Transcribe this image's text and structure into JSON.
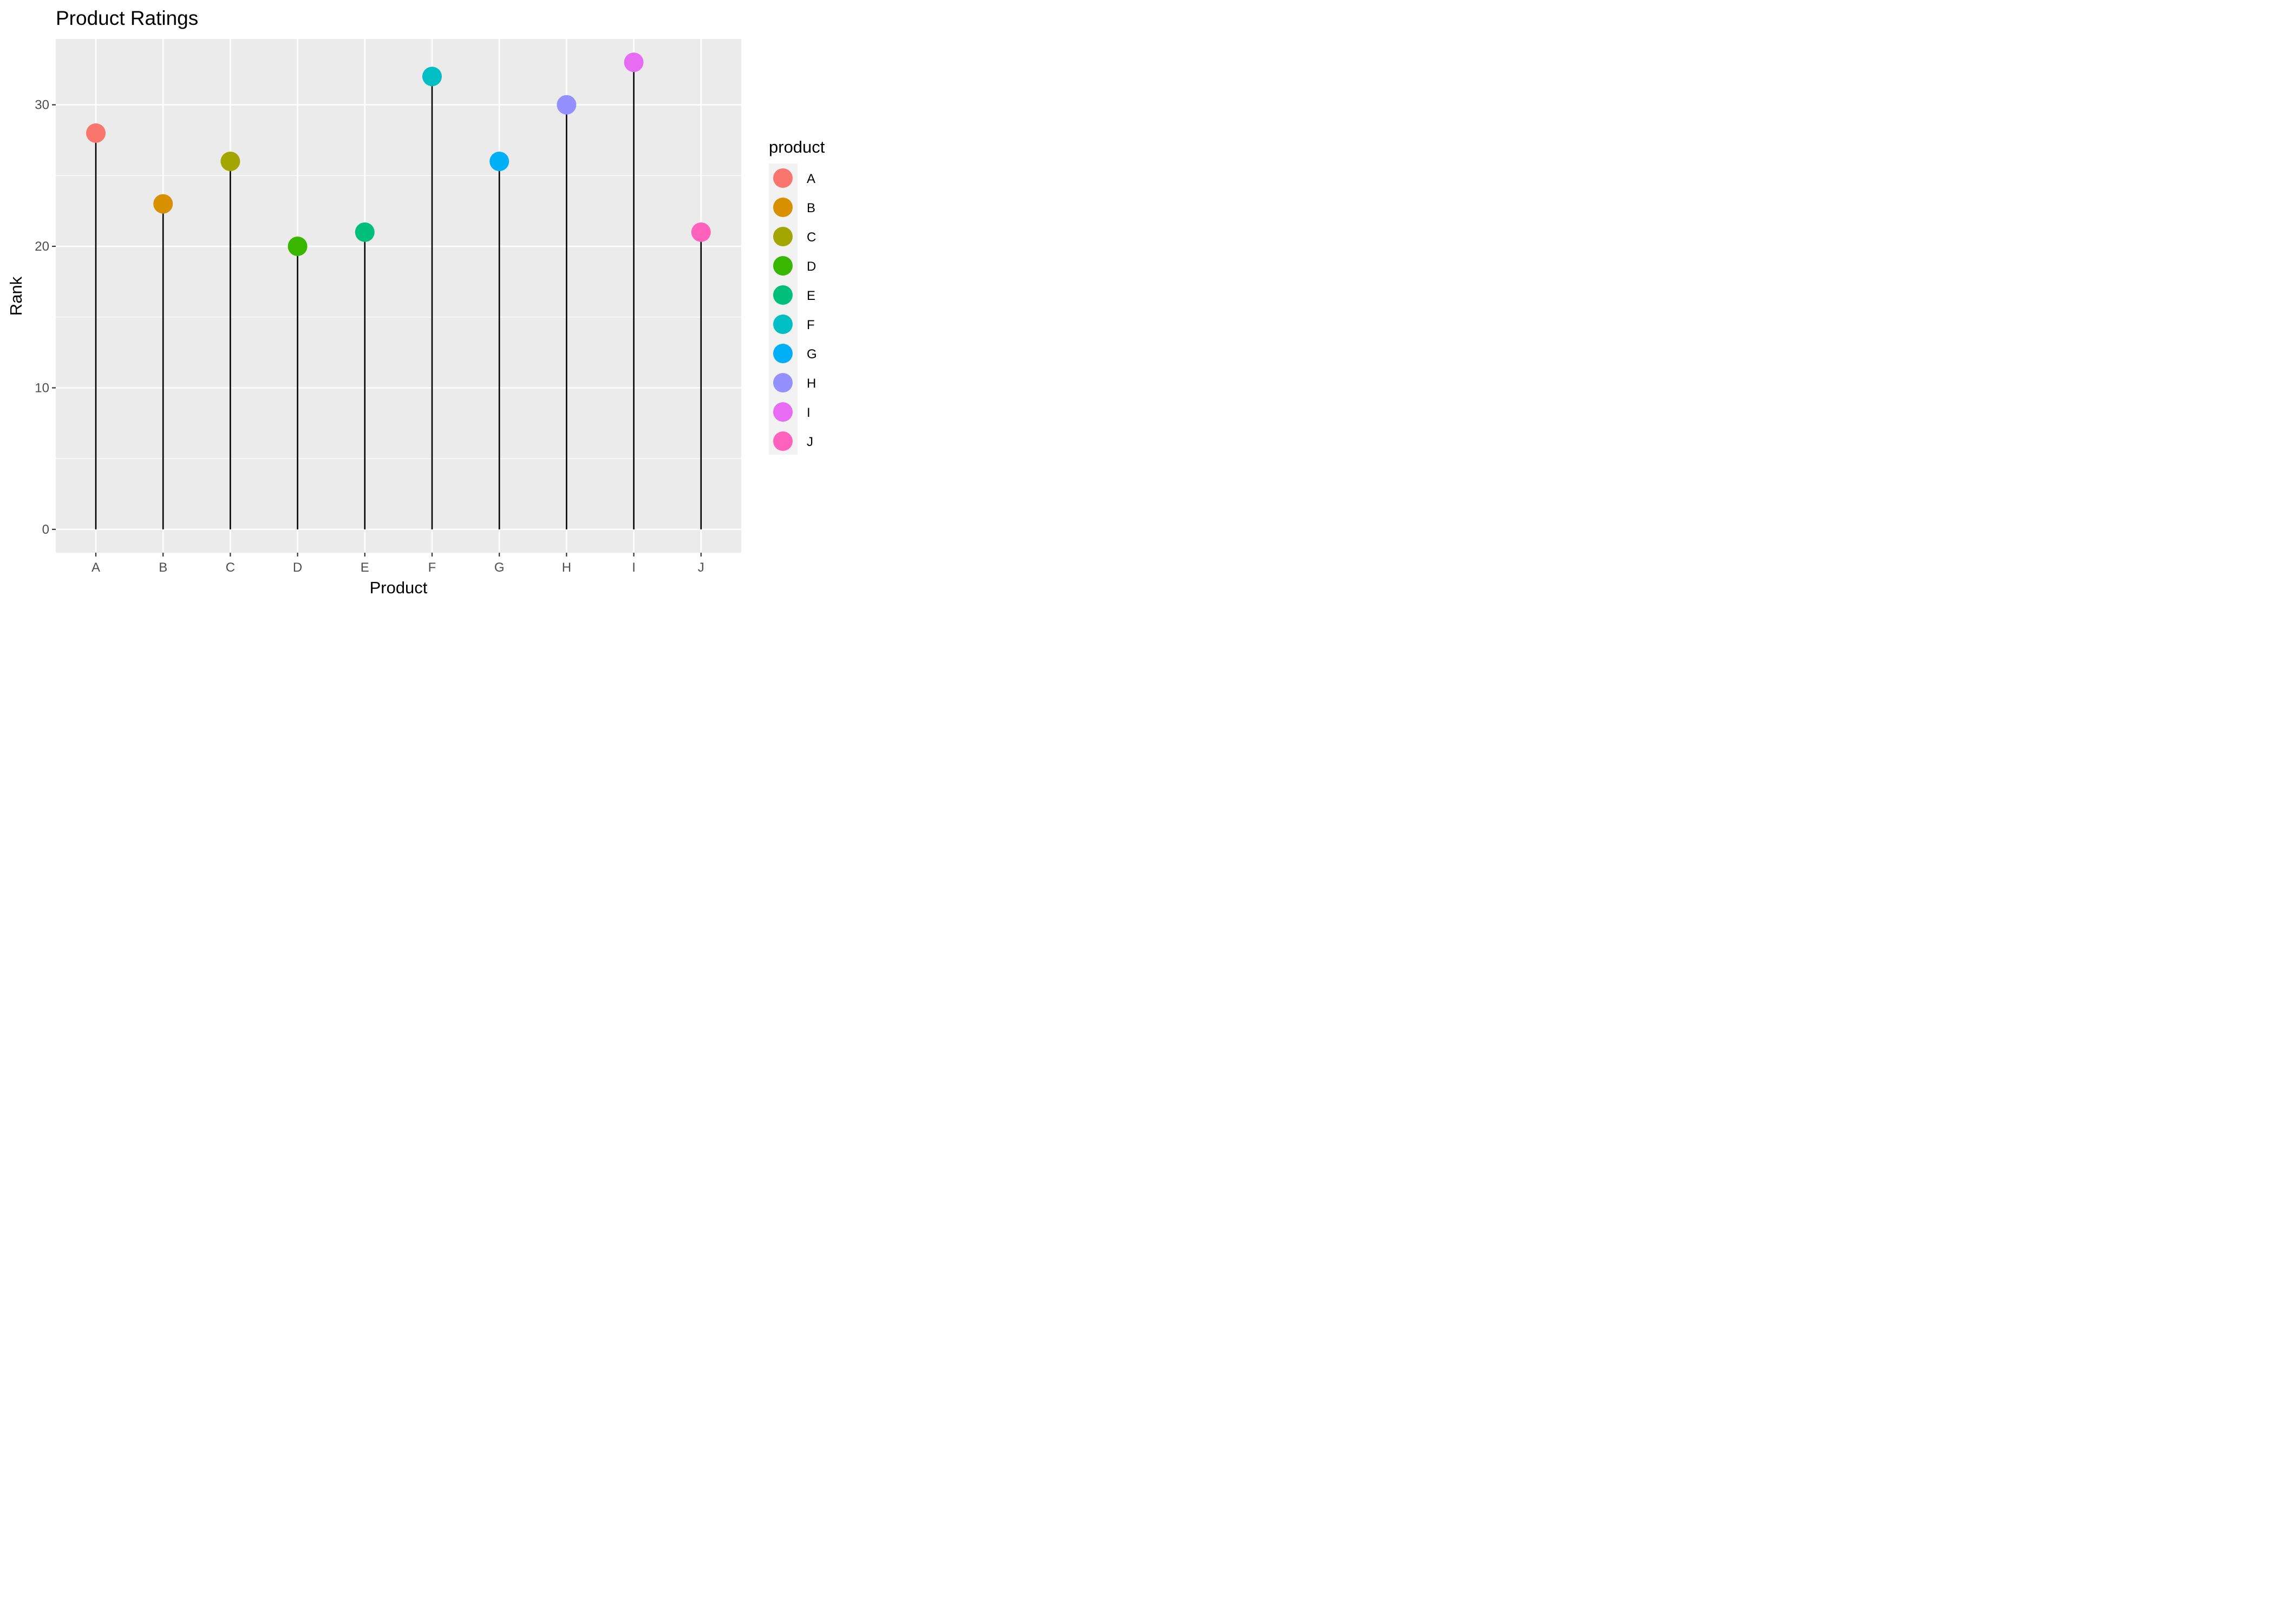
{
  "chart_data": {
    "type": "lollipop",
    "title": "Product Ratings",
    "xlabel": "Product",
    "ylabel": "Rank",
    "categories": [
      "A",
      "B",
      "C",
      "D",
      "E",
      "F",
      "G",
      "H",
      "I",
      "J"
    ],
    "values": [
      28,
      23,
      26,
      20,
      21,
      32,
      26,
      30,
      33,
      21
    ],
    "colors": [
      "#F8766D",
      "#D89000",
      "#A3A500",
      "#39B600",
      "#00BF7D",
      "#00BFC4",
      "#00B0F6",
      "#9590FF",
      "#E76BF3",
      "#FF62BC"
    ],
    "ylim": [
      -1.65,
      34.65
    ],
    "yticks": [
      0,
      10,
      20,
      30
    ],
    "grid": true,
    "legend": {
      "title": "product",
      "position": "right",
      "items": [
        "A",
        "B",
        "C",
        "D",
        "E",
        "F",
        "G",
        "H",
        "I",
        "J"
      ]
    },
    "stem_color": "#000000",
    "panel_background": "#EBEBEB"
  }
}
